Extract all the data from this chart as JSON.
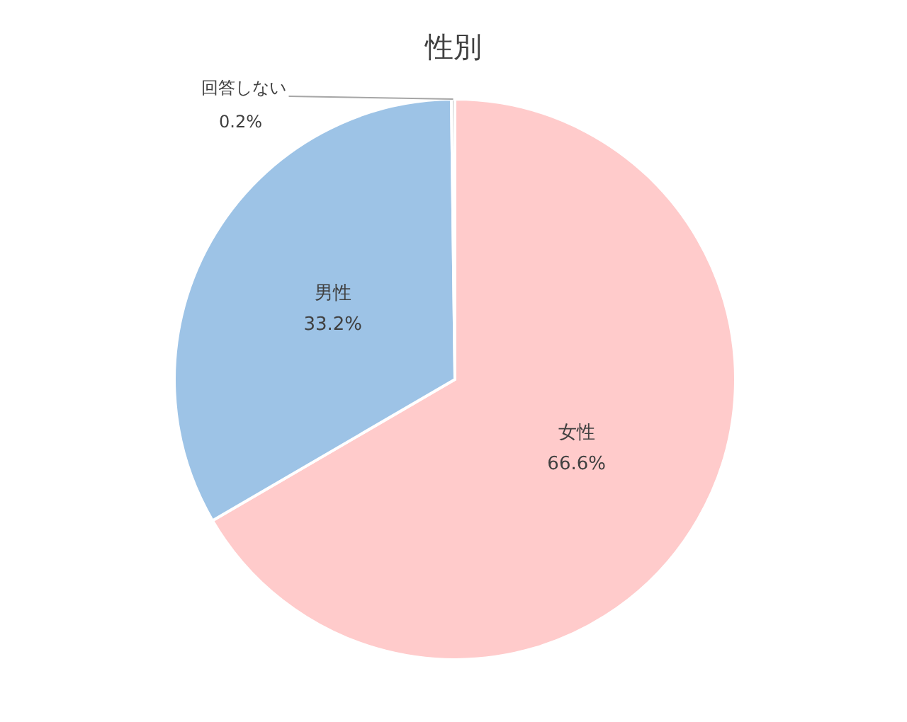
{
  "chart_data": {
    "type": "pie",
    "title": "性別",
    "categories": [
      "女性",
      "男性",
      "回答しない"
    ],
    "values": [
      66.6,
      33.2,
      0.2
    ],
    "value_labels": [
      "66.6%",
      "33.2%",
      "0.2%"
    ],
    "colors": [
      "#ffcbcb",
      "#9dc3e6",
      "#bfbfbf"
    ]
  }
}
